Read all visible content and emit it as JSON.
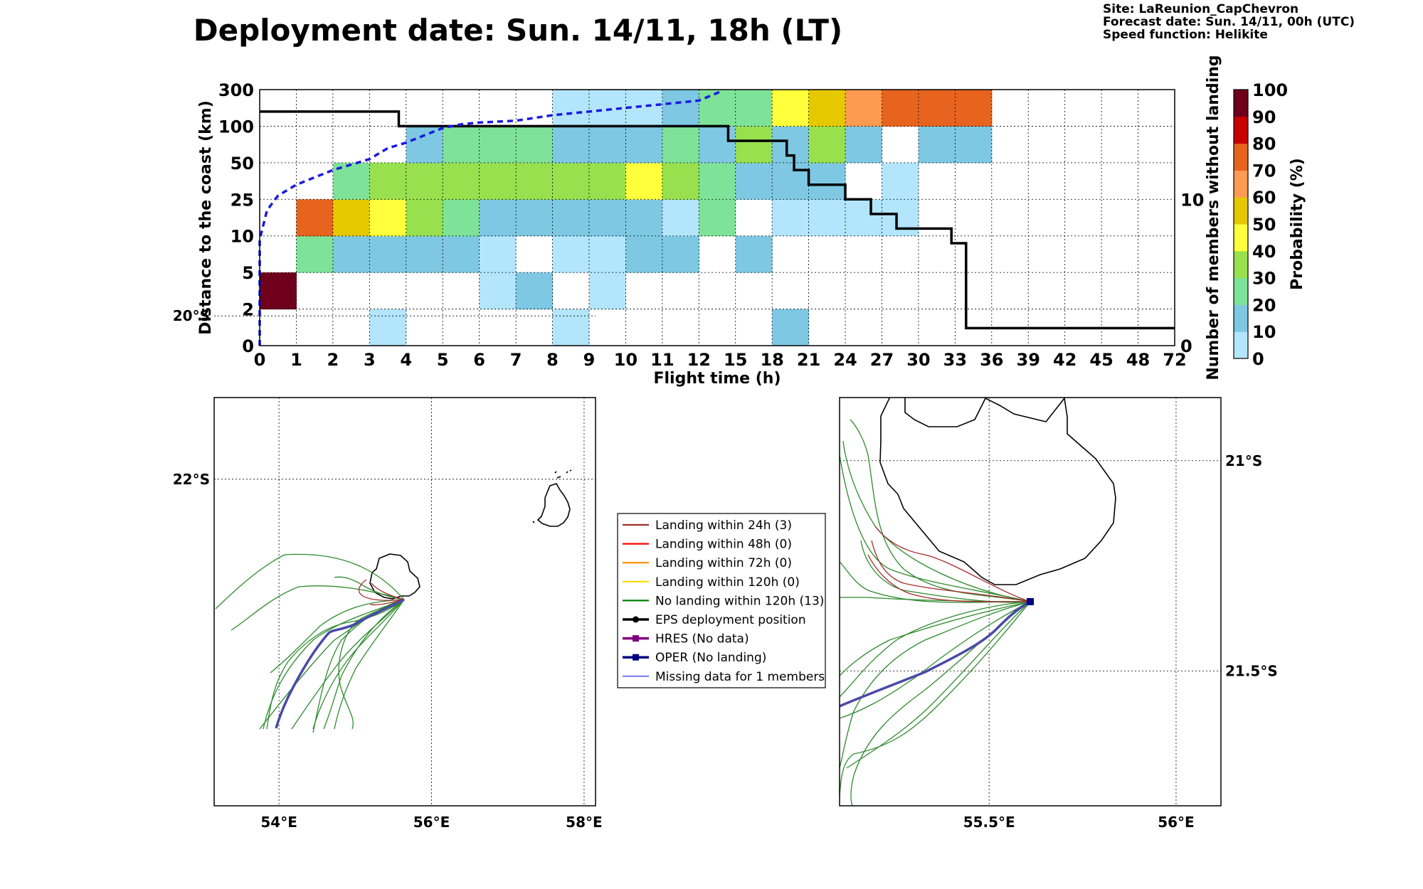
{
  "header": {
    "title": "Deployment date: Sun. 14/11, 18h (LT)",
    "site": "Site: LaReunion_CapChevron",
    "forecast": "Forecast date: Sun. 14/11, 00h (UTC)",
    "speed": "Speed function: Helikite"
  },
  "chart_data": [
    {
      "type": "heatmap",
      "xlabel": "Flight time (h)",
      "ylabel": "Distance to the coast (km)",
      "y2label": "Number of members without landing",
      "x_ticks": [
        "0",
        "1",
        "2",
        "3",
        "4",
        "5",
        "6",
        "7",
        "8",
        "9",
        "10",
        "11",
        "12",
        "15",
        "18",
        "21",
        "24",
        "27",
        "30",
        "33",
        "36",
        "39",
        "42",
        "45",
        "48",
        "72"
      ],
      "y_ticks": [
        "0",
        "2",
        "5",
        "10",
        "25",
        "50",
        "100",
        "300"
      ],
      "y2_ticks": [
        {
          "label": "10",
          "value": 10
        },
        {
          "label": "0",
          "value": 0
        }
      ],
      "y2_range": [
        0,
        17.5
      ],
      "colorbar": {
        "label": "Probability (%)",
        "ticks": [
          "0",
          "10",
          "20",
          "30",
          "40",
          "50",
          "60",
          "70",
          "80",
          "90",
          "100"
        ],
        "colors": [
          "#b3e5fc",
          "#7ec8e3",
          "#7ee398",
          "#98e04e",
          "#ffff3c",
          "#e6c800",
          "#ff9a52",
          "#e6641e",
          "#c80000",
          "#6e001c"
        ]
      },
      "cells_note": "cells: [x_bin_index, y_bin_index, probability_class_index 0..9]",
      "cells": [
        [
          0,
          1,
          9
        ],
        [
          1,
          2,
          2
        ],
        [
          2,
          2,
          1
        ],
        [
          3,
          2,
          1
        ],
        [
          4,
          2,
          1
        ],
        [
          5,
          2,
          1
        ],
        [
          6,
          2,
          0
        ],
        [
          8,
          2,
          0
        ],
        [
          9,
          2,
          0
        ],
        [
          10,
          2,
          1
        ],
        [
          11,
          2,
          1
        ],
        [
          13,
          2,
          1
        ],
        [
          1,
          3,
          7
        ],
        [
          2,
          3,
          5
        ],
        [
          3,
          3,
          4
        ],
        [
          4,
          3,
          3
        ],
        [
          5,
          3,
          2
        ],
        [
          6,
          3,
          1
        ],
        [
          7,
          3,
          1
        ],
        [
          8,
          3,
          1
        ],
        [
          9,
          3,
          1
        ],
        [
          10,
          3,
          1
        ],
        [
          11,
          3,
          0
        ],
        [
          12,
          3,
          2
        ],
        [
          14,
          3,
          0
        ],
        [
          15,
          3,
          0
        ],
        [
          16,
          3,
          0
        ],
        [
          17,
          3,
          0
        ],
        [
          2,
          4,
          2
        ],
        [
          3,
          4,
          3
        ],
        [
          4,
          4,
          3
        ],
        [
          5,
          4,
          3
        ],
        [
          6,
          4,
          3
        ],
        [
          7,
          4,
          3
        ],
        [
          8,
          4,
          3
        ],
        [
          9,
          4,
          3
        ],
        [
          10,
          4,
          4
        ],
        [
          11,
          4,
          3
        ],
        [
          12,
          4,
          2
        ],
        [
          13,
          4,
          1
        ],
        [
          14,
          4,
          1
        ],
        [
          15,
          4,
          1
        ],
        [
          17,
          4,
          0
        ],
        [
          4,
          5,
          1
        ],
        [
          5,
          5,
          2
        ],
        [
          6,
          5,
          2
        ],
        [
          7,
          5,
          2
        ],
        [
          8,
          5,
          1
        ],
        [
          9,
          5,
          1
        ],
        [
          10,
          5,
          1
        ],
        [
          11,
          5,
          2
        ],
        [
          12,
          5,
          1
        ],
        [
          13,
          5,
          3
        ],
        [
          14,
          5,
          1
        ],
        [
          15,
          5,
          3
        ],
        [
          16,
          5,
          1
        ],
        [
          18,
          5,
          1
        ],
        [
          19,
          5,
          1
        ],
        [
          8,
          6,
          0
        ],
        [
          9,
          6,
          0
        ],
        [
          10,
          6,
          0
        ],
        [
          11,
          6,
          1
        ],
        [
          12,
          6,
          2
        ],
        [
          13,
          6,
          2
        ],
        [
          14,
          6,
          4
        ],
        [
          15,
          6,
          5
        ],
        [
          16,
          6,
          6
        ],
        [
          17,
          6,
          7
        ],
        [
          18,
          6,
          7
        ],
        [
          19,
          6,
          7
        ],
        [
          3,
          0,
          0
        ],
        [
          8,
          0,
          0
        ],
        [
          14,
          0,
          1
        ],
        [
          6,
          1,
          0
        ],
        [
          7,
          1,
          1
        ],
        [
          9,
          1,
          0
        ]
      ],
      "members_without_landing_step": [
        [
          0,
          16
        ],
        [
          3.8,
          16
        ],
        [
          3.8,
          15
        ],
        [
          12.8,
          15
        ],
        [
          12.8,
          14
        ],
        [
          14.4,
          14
        ],
        [
          14.4,
          13
        ],
        [
          14.6,
          13
        ],
        [
          14.6,
          12
        ],
        [
          15,
          12
        ],
        [
          15,
          11
        ],
        [
          16,
          11
        ],
        [
          16,
          10
        ],
        [
          16.7,
          10
        ],
        [
          16.7,
          9
        ],
        [
          17.4,
          9
        ],
        [
          17.4,
          8
        ],
        [
          18.9,
          8
        ],
        [
          18.9,
          7
        ],
        [
          19.3,
          7
        ],
        [
          19.3,
          1.2
        ],
        [
          25,
          1.2
        ]
      ],
      "cumulative_distance_curve": [
        [
          0,
          0
        ],
        [
          0,
          2.9
        ],
        [
          0.2,
          3.7
        ],
        [
          0.5,
          4.1
        ],
        [
          1,
          4.4
        ],
        [
          1.5,
          4.6
        ],
        [
          2,
          4.8
        ],
        [
          2.5,
          4.95
        ],
        [
          3,
          5.1
        ],
        [
          3.5,
          5.4
        ],
        [
          4,
          5.55
        ],
        [
          4.5,
          5.75
        ],
        [
          5,
          5.95
        ],
        [
          5.5,
          6.05
        ],
        [
          6,
          6.1
        ],
        [
          7,
          6.15
        ],
        [
          8,
          6.3
        ],
        [
          9,
          6.4
        ],
        [
          10,
          6.5
        ],
        [
          11,
          6.6
        ],
        [
          12,
          6.7
        ],
        [
          12.6,
          6.95
        ]
      ]
    },
    {
      "type": "map",
      "x_ticks": [
        {
          "label": "54°E",
          "lon": 54
        },
        {
          "label": "56°E",
          "lon": 56
        },
        {
          "label": "58°E",
          "lon": 58
        }
      ],
      "y_ticks": [
        {
          "label": "20°S",
          "lat": -20
        },
        {
          "label": "22°S",
          "lat": -22
        }
      ],
      "lon_range": [
        53.15,
        58.15
      ],
      "lat_range": [
        -21.0,
        -26.0
      ]
    },
    {
      "type": "map",
      "x_ticks": [
        {
          "label": "55.5°E",
          "lon": 55.5
        },
        {
          "label": "56°E",
          "lon": 56
        }
      ],
      "y_ticks": [
        {
          "label": "21°S",
          "lat": -21
        },
        {
          "label": "21.5°S",
          "lat": -21.5
        }
      ],
      "lon_range": [
        55.1,
        56.12
      ],
      "lat_range": [
        -20.85,
        -21.82
      ]
    }
  ],
  "legend": {
    "items": [
      {
        "label": "Landing within 24h (3)",
        "color": "#a52a2a",
        "marker": "none"
      },
      {
        "label": "Landing within 48h (0)",
        "color": "#ff0000",
        "marker": "none"
      },
      {
        "label": "Landing within 72h (0)",
        "color": "#ff8c00",
        "marker": "none"
      },
      {
        "label": "Landing within 120h (0)",
        "color": "#ffd700",
        "marker": "none"
      },
      {
        "label": "No landing within 120h (13)",
        "color": "#008000",
        "marker": "none"
      },
      {
        "label": "EPS deployment position",
        "color": "#000000",
        "marker": "circle"
      },
      {
        "label": "HRES (No data)",
        "color": "#800080",
        "marker": "square"
      },
      {
        "label": "OPER (No landing)",
        "color": "#000080",
        "marker": "square"
      },
      {
        "label": "Missing data for 1 members",
        "color": "#4040ff",
        "marker": "none"
      }
    ]
  }
}
